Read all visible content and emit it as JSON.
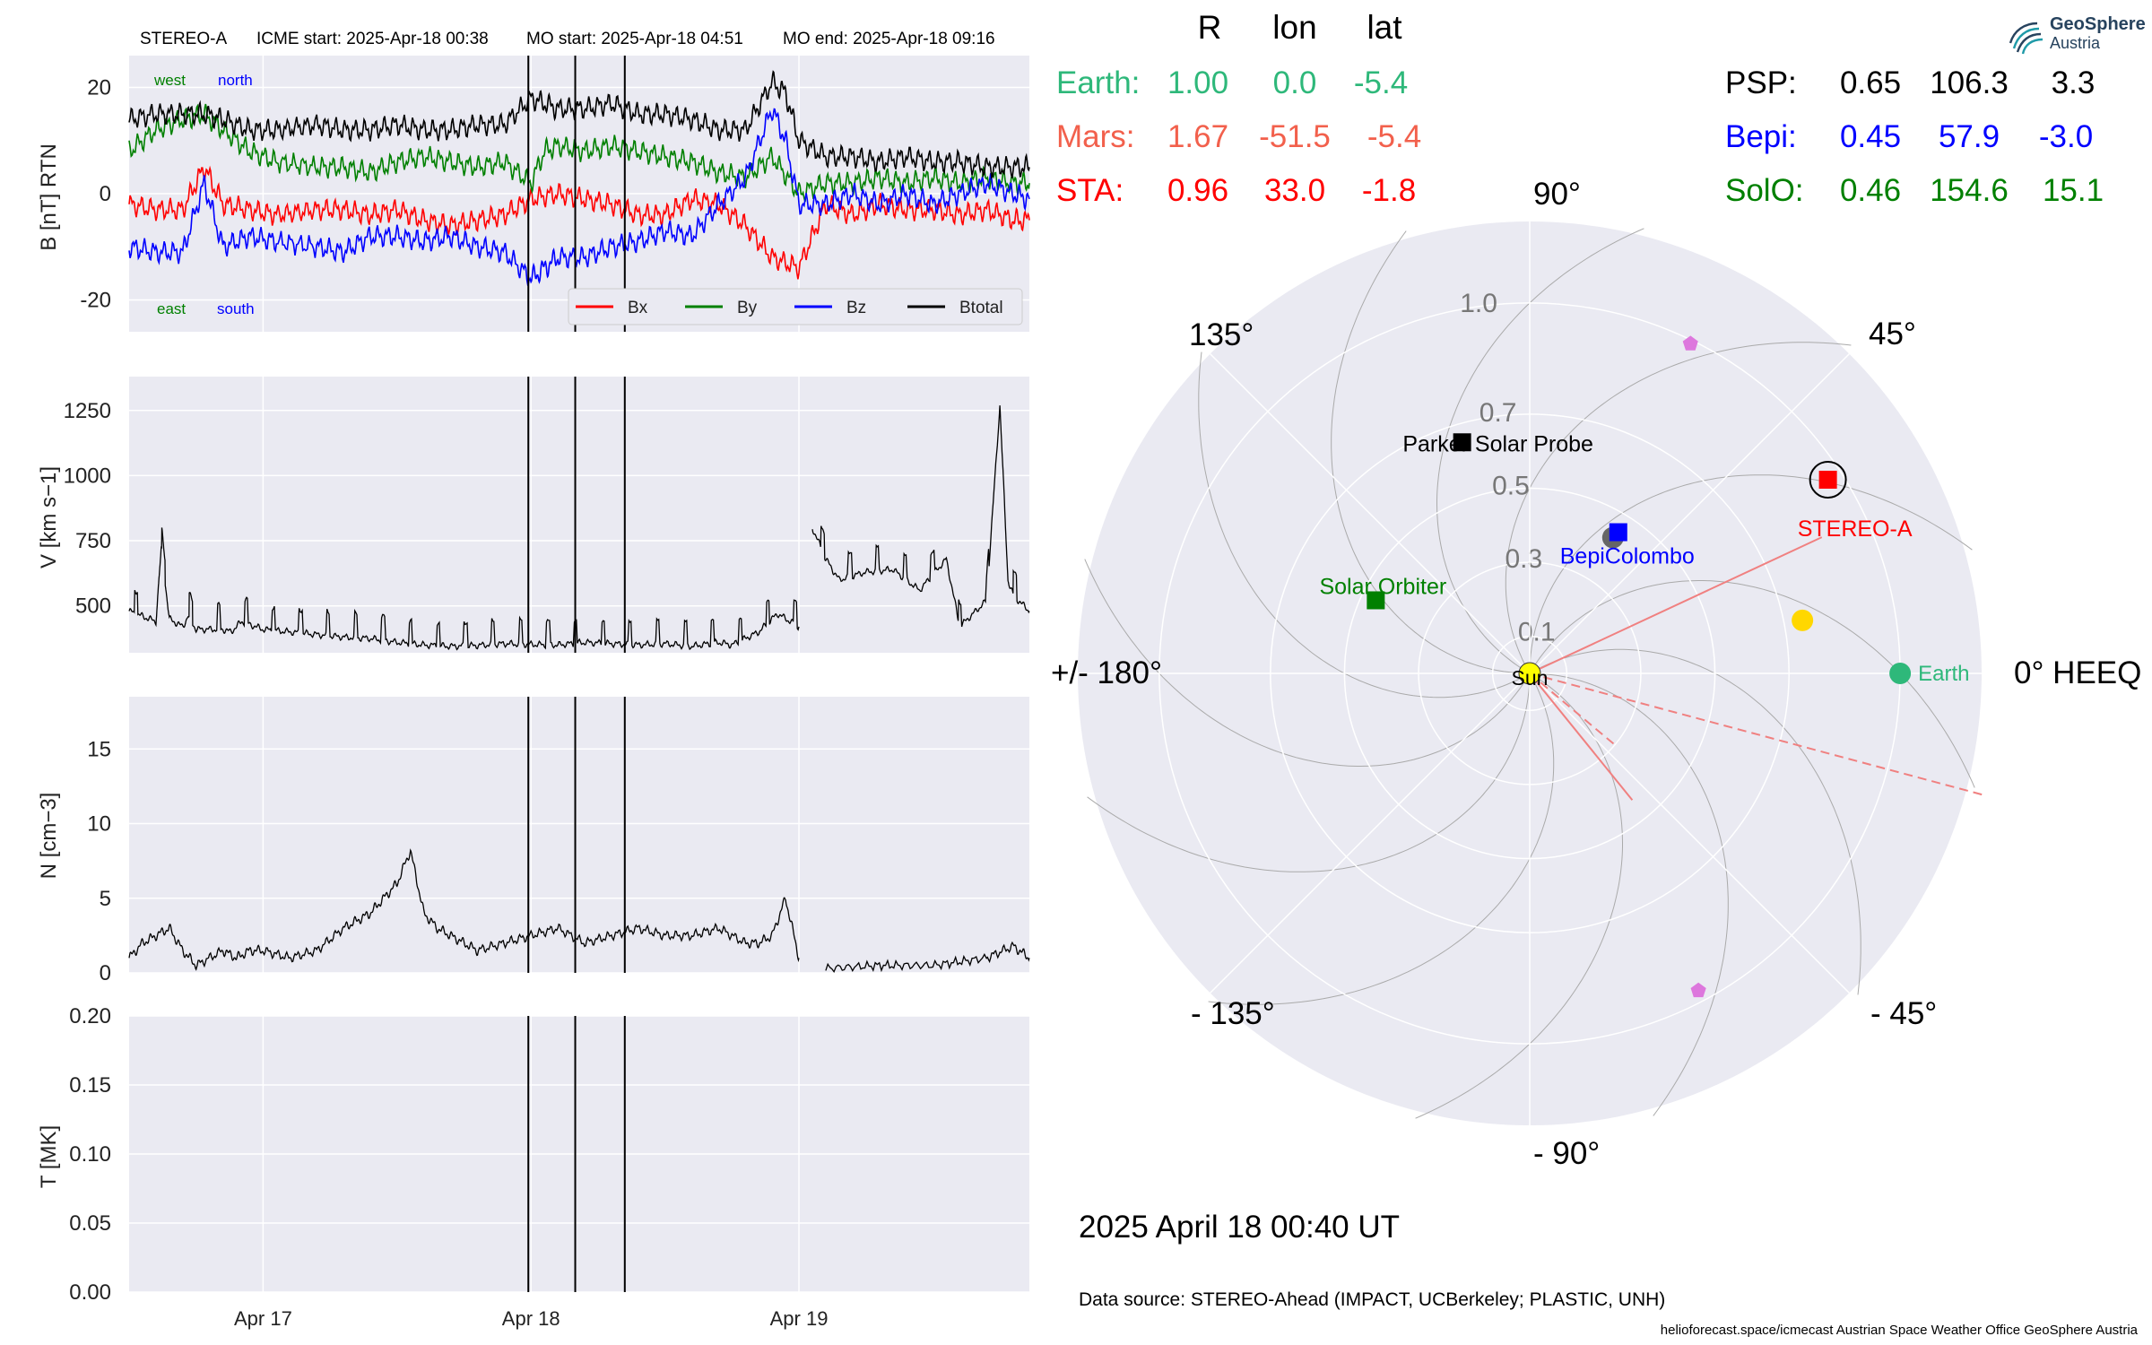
{
  "header": {
    "spacecraft": "STEREO-A",
    "icme_start": "ICME start: 2025-Apr-18 00:38",
    "mo_start": "MO start: 2025-Apr-18 04:51",
    "mo_end": "MO end: 2025-Apr-18 09:16"
  },
  "logo": {
    "line1": "GeoSphere",
    "line2": "Austria"
  },
  "position_table": {
    "headers": [
      "R",
      "lon",
      "lat"
    ],
    "left_rows": [
      {
        "name": "Earth:",
        "r": "1.00",
        "lon": "0.0",
        "lat": "-5.4",
        "color": "#2eb87a"
      },
      {
        "name": "Mars:",
        "r": "1.67",
        "lon": "-51.5",
        "lat": "-5.4",
        "color": "#f2604c"
      },
      {
        "name": "STA:",
        "r": "0.96",
        "lon": "33.0",
        "lat": "-1.8",
        "color": "#ff0000"
      }
    ],
    "right_rows": [
      {
        "name": "PSP:",
        "r": "0.65",
        "lon": "106.3",
        "lat": "3.3",
        "color": "#000000"
      },
      {
        "name": "Bepi:",
        "r": "0.45",
        "lon": "57.9",
        "lat": "-3.0",
        "color": "#0000ff"
      },
      {
        "name": "SolO:",
        "r": "0.46",
        "lon": "154.6",
        "lat": "15.1",
        "color": "#008000"
      }
    ]
  },
  "datetime": "2025 April 18  00:40 UT",
  "data_source": "Data source: STEREO-Ahead (IMPACT, UCBerkeley; PLASTIC, UNH)",
  "footer_credits": "helioforecast.space/icmecast   Austrian Space Weather Office   GeoSphere Austria",
  "chart_data": [
    {
      "type": "line",
      "panel": "magnetic field",
      "ylabel": "B [nT] RTN",
      "ylim": [
        -26,
        26
      ],
      "yticks": [
        -20,
        0,
        20
      ],
      "corner_labels": {
        "top_left": "west",
        "top_right": "north",
        "bottom_left": "east",
        "bottom_right": "south"
      },
      "corner_colors": {
        "west": "#008000",
        "north": "#0000ff",
        "east": "#008000",
        "south": "#0000ff"
      },
      "legend_position": "lower-right",
      "series": [
        {
          "name": "Bx",
          "color": "#ff0000",
          "t": [
            0.0,
            0.1,
            0.2,
            0.28,
            0.35,
            0.45,
            0.55,
            0.7,
            0.8,
            0.9,
            1.0,
            1.1,
            1.2,
            1.3,
            1.4,
            1.5,
            1.6,
            1.7,
            1.8,
            1.9,
            2.0,
            2.1,
            2.2,
            2.3,
            2.4,
            2.5,
            2.6,
            2.7,
            2.8,
            2.9,
            3.0,
            3.1,
            3.2,
            3.3,
            3.36
          ],
          "v": [
            -2,
            -3,
            -3,
            5,
            -2,
            -3,
            -4,
            -3,
            -3,
            -4,
            -3,
            -5,
            -6,
            -5,
            -4,
            -1,
            0,
            -1,
            -2,
            -4,
            -4,
            -1,
            -2,
            -6,
            -12,
            -14,
            -2,
            -4,
            -2,
            -3,
            -3,
            -4,
            -3,
            -5,
            -5
          ]
        },
        {
          "name": "By",
          "color": "#008000",
          "t": [
            0.0,
            0.1,
            0.2,
            0.28,
            0.35,
            0.45,
            0.55,
            0.7,
            0.8,
            0.9,
            1.0,
            1.1,
            1.2,
            1.3,
            1.4,
            1.5,
            1.55,
            1.6,
            1.7,
            1.8,
            1.9,
            2.0,
            2.1,
            2.2,
            2.3,
            2.4,
            2.5,
            2.6,
            2.7,
            2.8,
            2.9,
            3.0,
            3.1,
            3.2,
            3.3,
            3.36
          ],
          "v": [
            8,
            12,
            14,
            15,
            12,
            8,
            6,
            5,
            5,
            4,
            6,
            7,
            6,
            5,
            6,
            2,
            8,
            9,
            8,
            9,
            8,
            7,
            6,
            4,
            3,
            7,
            0,
            2,
            2,
            3,
            2,
            3,
            2,
            3,
            2,
            2
          ]
        },
        {
          "name": "Bz",
          "color": "#0000ff",
          "t": [
            0.0,
            0.1,
            0.2,
            0.28,
            0.35,
            0.45,
            0.55,
            0.7,
            0.8,
            0.9,
            1.0,
            1.1,
            1.2,
            1.3,
            1.4,
            1.5,
            1.55,
            1.6,
            1.7,
            1.8,
            1.9,
            2.0,
            2.1,
            2.2,
            2.3,
            2.4,
            2.45,
            2.5,
            2.6,
            2.7,
            2.8,
            2.9,
            3.0,
            3.1,
            3.2,
            3.3,
            3.36
          ],
          "v": [
            -10,
            -11,
            -11,
            2,
            -10,
            -8,
            -9,
            -10,
            -11,
            -8,
            -8,
            -9,
            -8,
            -10,
            -11,
            -16,
            -14,
            -12,
            -12,
            -10,
            -9,
            -7,
            -8,
            -2,
            3,
            16,
            10,
            -2,
            -2,
            0,
            -2,
            0,
            -2,
            0,
            2,
            0,
            -1
          ]
        },
        {
          "name": "Btotal",
          "color": "#000000",
          "t": [
            0.0,
            0.1,
            0.2,
            0.28,
            0.35,
            0.45,
            0.55,
            0.7,
            0.8,
            0.9,
            1.0,
            1.1,
            1.2,
            1.3,
            1.4,
            1.5,
            1.55,
            1.6,
            1.7,
            1.8,
            1.9,
            2.0,
            2.1,
            2.2,
            2.3,
            2.4,
            2.45,
            2.5,
            2.6,
            2.7,
            2.8,
            2.9,
            3.0,
            3.1,
            3.2,
            3.3,
            3.36
          ],
          "v": [
            14,
            15,
            15,
            15,
            14,
            12,
            12,
            13,
            12,
            12,
            13,
            12,
            12,
            13,
            13,
            18,
            17,
            16,
            16,
            17,
            15,
            15,
            14,
            12,
            12,
            21,
            19,
            10,
            7,
            7,
            6,
            7,
            6,
            6,
            5,
            5,
            5
          ]
        }
      ]
    },
    {
      "type": "line",
      "panel": "speed",
      "ylabel": "V [km s−1]",
      "ylim": [
        320,
        1380
      ],
      "yticks": [
        500,
        750,
        1000,
        1250
      ],
      "series": [
        {
          "name": "",
          "color": "#000000",
          "t": [
            0.0,
            0.05,
            0.1,
            0.12,
            0.15,
            0.2,
            0.22,
            0.25,
            0.35,
            0.38,
            0.42,
            0.5,
            0.6,
            0.7,
            0.8,
            0.9,
            1.0,
            1.1,
            1.2,
            1.3,
            1.4,
            1.5,
            1.6,
            1.7,
            1.8,
            1.9,
            2.0,
            2.1,
            2.2,
            2.25,
            2.35,
            2.42,
            2.5
          ],
          "v": [
            480,
            460,
            440,
            720,
            450,
            420,
            460,
            410,
            410,
            400,
            440,
            410,
            400,
            390,
            380,
            375,
            360,
            350,
            345,
            348,
            355,
            352,
            350,
            360,
            355,
            350,
            355,
            345,
            360,
            350,
            400,
            470,
            420
          ]
        },
        {
          "name": "",
          "color": "#000000",
          "t": [
            2.55,
            2.6,
            2.65,
            2.75,
            2.85,
            2.95,
            3.05,
            3.1,
            3.2,
            3.25,
            3.28,
            3.3,
            3.36
          ],
          "v": [
            800,
            680,
            600,
            630,
            640,
            560,
            680,
            420,
            520,
            1270,
            600,
            540,
            480
          ]
        }
      ]
    },
    {
      "type": "line",
      "panel": "density",
      "ylabel": "N [cm−3]",
      "ylim": [
        0,
        18.5
      ],
      "yticks": [
        0,
        5,
        10,
        15
      ],
      "series": [
        {
          "name": "",
          "color": "#000000",
          "t": [
            0.0,
            0.05,
            0.1,
            0.15,
            0.2,
            0.25,
            0.35,
            0.4,
            0.45,
            0.5,
            0.6,
            0.7,
            0.8,
            0.85,
            0.9,
            0.95,
            1.0,
            1.05,
            1.1,
            1.15,
            1.2,
            1.25,
            1.3,
            1.4,
            1.5,
            1.6,
            1.7,
            1.8,
            1.9,
            2.0,
            2.1,
            2.2,
            2.3,
            2.35,
            2.4,
            2.45,
            2.5
          ],
          "v": [
            1,
            2,
            2.5,
            3,
            1.5,
            0.5,
            1.5,
            1,
            1.5,
            1.5,
            1,
            1.5,
            3,
            3.5,
            4,
            5,
            6,
            8.2,
            4,
            3,
            2.5,
            2,
            1.5,
            2,
            2.5,
            3,
            2,
            2.5,
            3,
            2.5,
            2.5,
            3,
            2,
            2,
            2.5,
            5,
            1
          ]
        },
        {
          "name": "",
          "color": "#000000",
          "t": [
            2.6,
            2.8,
            3.0,
            3.2,
            3.3,
            3.36
          ],
          "v": [
            0.3,
            0.5,
            0.5,
            1,
            1.8,
            1
          ]
        }
      ]
    },
    {
      "type": "line",
      "panel": "temperature",
      "ylabel": "T [MK]",
      "ylim": [
        0.0,
        0.2
      ],
      "yticks": [
        0.0,
        0.05,
        0.1,
        0.15,
        0.2
      ],
      "ytick_labels": [
        "0.00",
        "0.05",
        "0.10",
        "0.15",
        "0.20"
      ],
      "series": []
    },
    {
      "type": "line",
      "panel": "time axis",
      "xticks": [
        0.5,
        1.5,
        2.5
      ],
      "xtick_labels": [
        "Apr 17",
        "Apr 18",
        "Apr 19"
      ],
      "event_lines": [
        1.49,
        1.665,
        1.85
      ],
      "xlim": [
        0.0,
        3.36
      ]
    },
    {
      "type": "scatter",
      "panel": "polar position plot (HEEQ)",
      "rmax": 1.22,
      "r_grid": [
        0.1,
        0.3,
        0.5,
        0.7,
        1.0
      ],
      "r_grid_labels": [
        "0.1",
        "0.3",
        "0.5",
        "0.7",
        "1.0"
      ],
      "angle_labels": [
        {
          "deg": 0,
          "text": "0° HEEQ"
        },
        {
          "deg": 45,
          "text": "45°"
        },
        {
          "deg": 90,
          "text": "90°"
        },
        {
          "deg": 135,
          "text": "135°"
        },
        {
          "deg": 180,
          "text": "+/- 180°"
        },
        {
          "deg": -135,
          "text": "- 135°"
        },
        {
          "deg": -90,
          "text": "- 90°"
        },
        {
          "deg": -45,
          "text": "- 45°"
        }
      ],
      "bodies": [
        {
          "name": "Sun",
          "r": 0.0,
          "lon": 0,
          "marker": "circle",
          "color": "#ffff00"
        },
        {
          "name": "Earth",
          "r": 1.0,
          "lon": 0.0,
          "marker": "circle",
          "color": "#2eb87a"
        },
        {
          "name": "STEREO-A",
          "r": 0.96,
          "lon": 33.0,
          "marker": "square",
          "color": "#ff0000"
        },
        {
          "name": "BepiColombo",
          "r": 0.45,
          "lon": 57.9,
          "marker": "square",
          "color": "#0000ff"
        },
        {
          "name": "Parker Solar Probe",
          "r": 0.65,
          "lon": 106.3,
          "marker": "square",
          "color": "#000000"
        },
        {
          "name": "Solar Orbiter",
          "r": 0.46,
          "lon": 154.6,
          "marker": "square",
          "color": "#008000"
        }
      ],
      "extra_markers": [
        {
          "r": 0.43,
          "lon": 58.5,
          "marker": "circle",
          "color": "#666666"
        },
        {
          "r": 0.75,
          "lon": 11,
          "marker": "circle",
          "color": "#ffd700"
        },
        {
          "r": 0.99,
          "lon": 64,
          "marker": "pentagon",
          "color": "#dd77dd"
        },
        {
          "r": 0.97,
          "lon": -62,
          "marker": "pentagon",
          "color": "#dd77dd"
        }
      ],
      "cme_lines": [
        {
          "lon": 25,
          "r": 0.87,
          "style": "solid"
        },
        {
          "lon": -51,
          "r": 0.44,
          "style": "solid"
        },
        {
          "lon": -40,
          "r": 0.3,
          "style": "dashed"
        },
        {
          "lon": -15,
          "r": 1.27,
          "style": "dashed"
        }
      ]
    }
  ]
}
